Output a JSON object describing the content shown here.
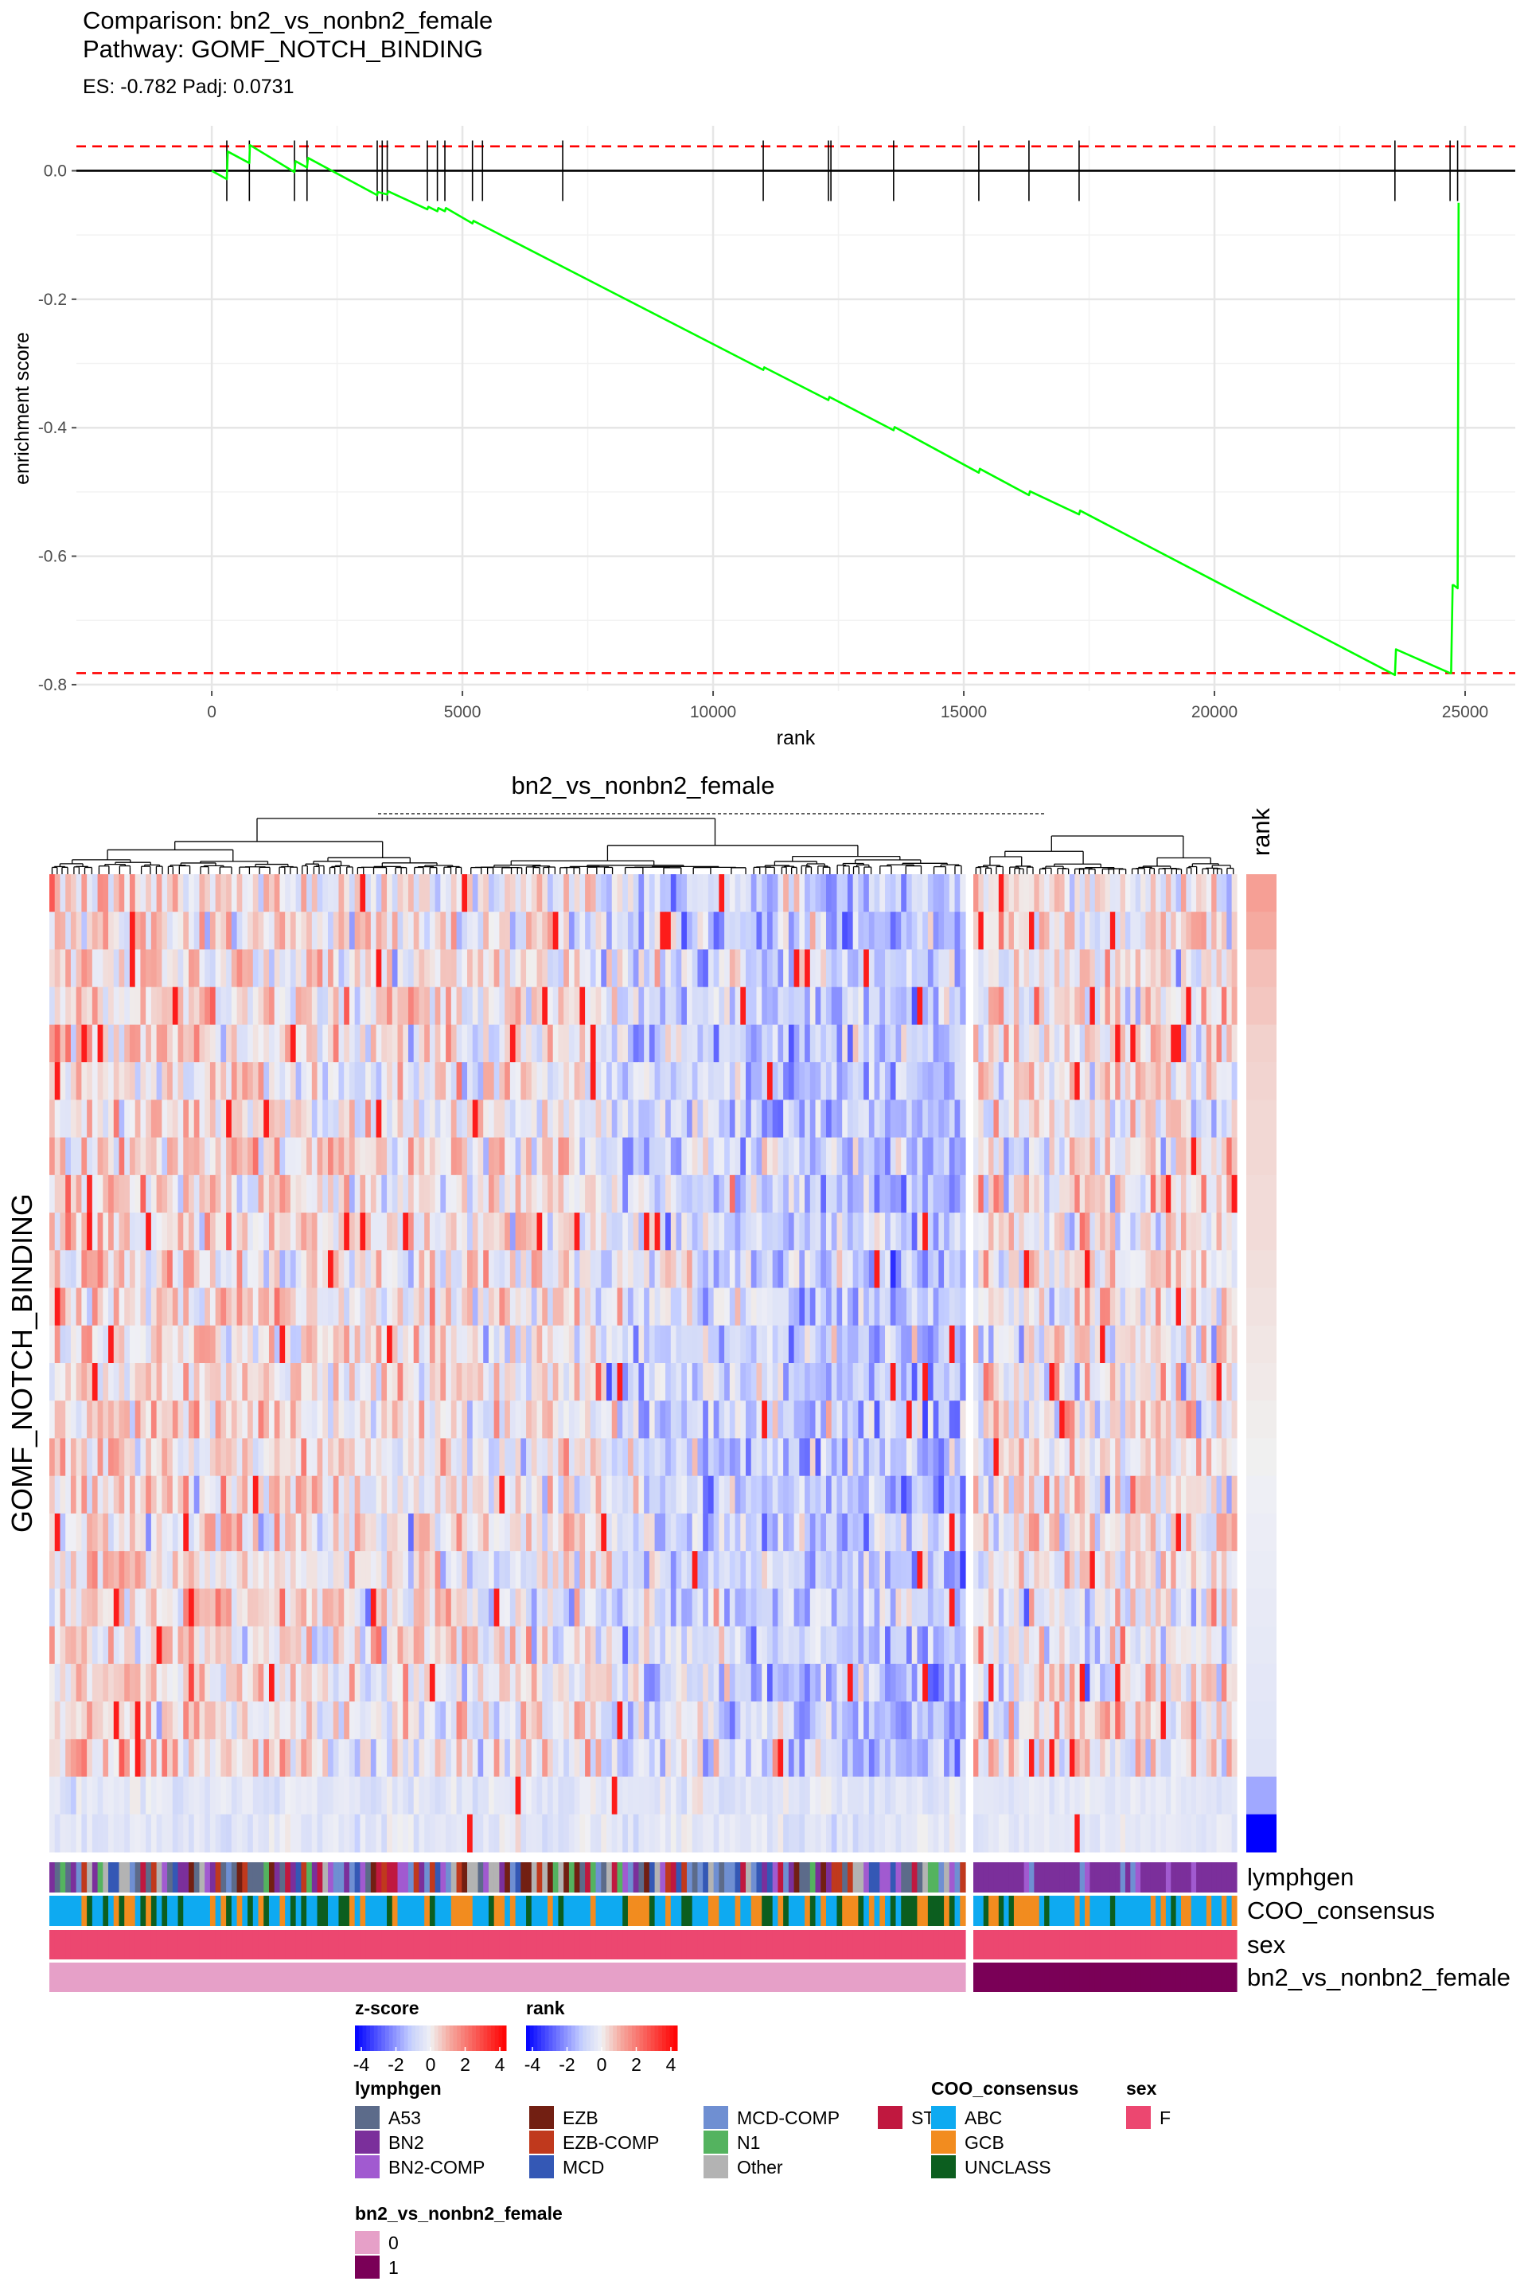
{
  "header": {
    "comparison": "Comparison: bn2_vs_nonbn2_female",
    "pathway": "Pathway: GOMF_NOTCH_BINDING",
    "stats": "ES: -0.782 Padj: 0.0731"
  },
  "chart_data": [
    {
      "type": "line",
      "title": "Comparison: bn2_vs_nonbn2_female",
      "subtitle": "Pathway: GOMF_NOTCH_BINDING",
      "caption": "ES: -0.782 Padj: 0.0731",
      "xlabel": "rank",
      "ylabel": "enrichment score",
      "xlim": [
        -2700,
        26000
      ],
      "ylim": [
        -0.81,
        0.07
      ],
      "x_ticks": [
        0,
        5000,
        10000,
        15000,
        20000,
        25000
      ],
      "x_tick_labels": [
        "0",
        "5000",
        "10000",
        "15000",
        "20000",
        "25000"
      ],
      "y_ticks": [
        0.0,
        -0.2,
        -0.4,
        -0.6,
        -0.8
      ],
      "y_tick_labels": [
        "0.0",
        "-0.2",
        "-0.4",
        "-0.6",
        "-0.8"
      ],
      "grid": true,
      "hlines": [
        {
          "y": 0.038,
          "style": "dashed",
          "color": "#ff0000"
        },
        {
          "y": -0.782,
          "style": "dashed",
          "color": "#ff0000"
        },
        {
          "y": 0.0,
          "style": "solid",
          "color": "#000000"
        }
      ],
      "series": [
        {
          "color": "#00ff00",
          "x": [
            0,
            300,
            320,
            750,
            760,
            1650,
            1670,
            1900,
            1920,
            3300,
            3310,
            3500,
            3520,
            4300,
            4320,
            4500,
            4520,
            4650,
            4670,
            5200,
            5220,
            11000,
            11020,
            12300,
            12320,
            13600,
            13620,
            15300,
            15320,
            16300,
            16320,
            17300,
            17320,
            23600,
            23620,
            24700,
            24720,
            24750,
            24770,
            24850,
            24870
          ],
          "y": [
            0.0,
            -0.013,
            0.03,
            0.012,
            0.04,
            -0.002,
            0.015,
            0.005,
            0.02,
            -0.038,
            -0.033,
            -0.037,
            -0.032,
            -0.06,
            -0.056,
            -0.063,
            -0.058,
            -0.063,
            -0.058,
            -0.082,
            -0.078,
            -0.31,
            -0.306,
            -0.357,
            -0.352,
            -0.404,
            -0.399,
            -0.47,
            -0.464,
            -0.505,
            -0.499,
            -0.535,
            -0.529,
            -0.785,
            -0.745,
            -0.782,
            -0.782,
            -0.645,
            -0.645,
            -0.65,
            -0.05
          ]
        }
      ],
      "gene_hits": [
        300,
        750,
        1650,
        1900,
        3300,
        3400,
        3500,
        4300,
        4500,
        4650,
        5200,
        5400,
        7000,
        11000,
        12300,
        12350,
        13600,
        15300,
        16300,
        17300,
        23600,
        24700,
        24850
      ]
    },
    {
      "type": "heatmap",
      "title": "bn2_vs_nonbn2_female",
      "row_title": "GOMF_NOTCH_BINDING",
      "rows": 26,
      "group_sizes": [
        171,
        52
      ],
      "rank_column_label": "rank",
      "rank_values": [
        1.2,
        1.0,
        0.7,
        0.6,
        0.45,
        0.4,
        0.35,
        0.35,
        0.3,
        0.3,
        0.25,
        0.2,
        0.15,
        0.1,
        0.05,
        0.0,
        -0.05,
        -0.1,
        -0.15,
        -0.2,
        -0.25,
        -0.3,
        -0.35,
        -0.4,
        -1.6,
        -4.0
      ],
      "annotation_rows": [
        "lymphgen",
        "COO_consensus",
        "sex",
        "bn2_vs_nonbn2_female"
      ],
      "legends": {
        "zscore": {
          "title": "z-score",
          "ticks": [
            "-4",
            "-2",
            "0",
            "2",
            "4"
          ]
        },
        "rank": {
          "title": "rank",
          "ticks": [
            "-4",
            "-2",
            "0",
            "2",
            "4"
          ]
        },
        "lymphgen": {
          "title": "lymphgen",
          "items": [
            {
              "label": "A53",
              "color": "#5c6b8a"
            },
            {
              "label": "BN2",
              "color": "#7b2f9b"
            },
            {
              "label": "BN2-COMP",
              "color": "#a15ad0"
            },
            {
              "label": "EZB",
              "color": "#721f12"
            },
            {
              "label": "EZB-COMP",
              "color": "#c0391d"
            },
            {
              "label": "MCD",
              "color": "#3458b5"
            },
            {
              "label": "MCD-COMP",
              "color": "#6f8fd2"
            },
            {
              "label": "N1",
              "color": "#54b35f"
            },
            {
              "label": "Other",
              "color": "#b3b3b3"
            },
            {
              "label": "ST2",
              "color": "#c0183f"
            }
          ]
        },
        "coo": {
          "title": "COO_consensus",
          "items": [
            {
              "label": "ABC",
              "color": "#0eaaf1"
            },
            {
              "label": "GCB",
              "color": "#f28c1f"
            },
            {
              "label": "UNCLASS",
              "color": "#0c5e1f"
            }
          ]
        },
        "sex": {
          "title": "sex",
          "items": [
            {
              "label": "F",
              "color": "#ec4770"
            }
          ]
        },
        "group": {
          "title": "bn2_vs_nonbn2_female",
          "items": [
            {
              "label": "0",
              "color": "#e6a0c8"
            },
            {
              "label": "1",
              "color": "#7a0057"
            }
          ]
        }
      }
    }
  ]
}
